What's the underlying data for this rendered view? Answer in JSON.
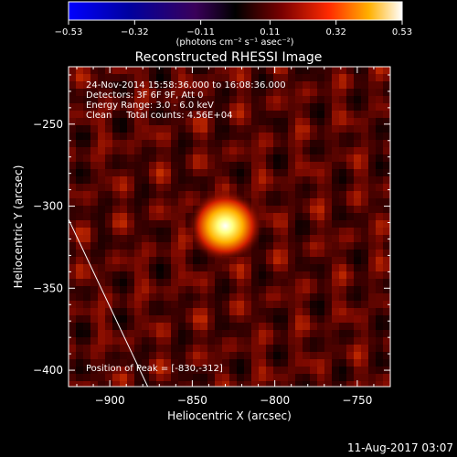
{
  "chart_data": {
    "type": "heatmap",
    "title": "Reconstructed RHESSI Image",
    "xlabel": "Heliocentric X (arcsec)",
    "ylabel": "Heliocentric Y (arcsec)",
    "xlim": [
      -925,
      -730
    ],
    "ylim": [
      -410,
      -215
    ],
    "x_ticks": [
      -900,
      -850,
      -800,
      -750
    ],
    "y_ticks": [
      -400,
      -350,
      -300,
      -250
    ],
    "x_tick_labels": [
      "−900",
      "−850",
      "−800",
      "−750"
    ],
    "y_tick_labels": [
      "−400",
      "−350",
      "−300",
      "−250"
    ],
    "colorbar": {
      "min": -0.53,
      "max": 0.53,
      "ticks": [
        -0.53,
        -0.32,
        -0.11,
        0.11,
        0.32,
        0.53
      ],
      "tick_labels": [
        "−0.53",
        "−0.32",
        "−0.11",
        "0.11",
        "0.32",
        "0.53"
      ],
      "units_label": "(photons cm⁻² s⁻¹ asec⁻²)"
    },
    "annotations": [
      "24-Nov-2014 15:58:36.000 to 16:08:36.000",
      "Detectors: 3F 6F 9F, Att 0",
      "Energy Range: 3.0 - 6.0 keV",
      "Clean     Total counts: 4.56E+04"
    ],
    "peak_label": "Position of Peak = [-830,-312]",
    "peak": {
      "x": -830,
      "y": -312,
      "value": 0.53
    },
    "limb_line": [
      [
        -925,
        -308
      ],
      [
        -877,
        -410
      ]
    ]
  },
  "footer": {
    "timestamp": "11-Aug-2017 03:07"
  }
}
